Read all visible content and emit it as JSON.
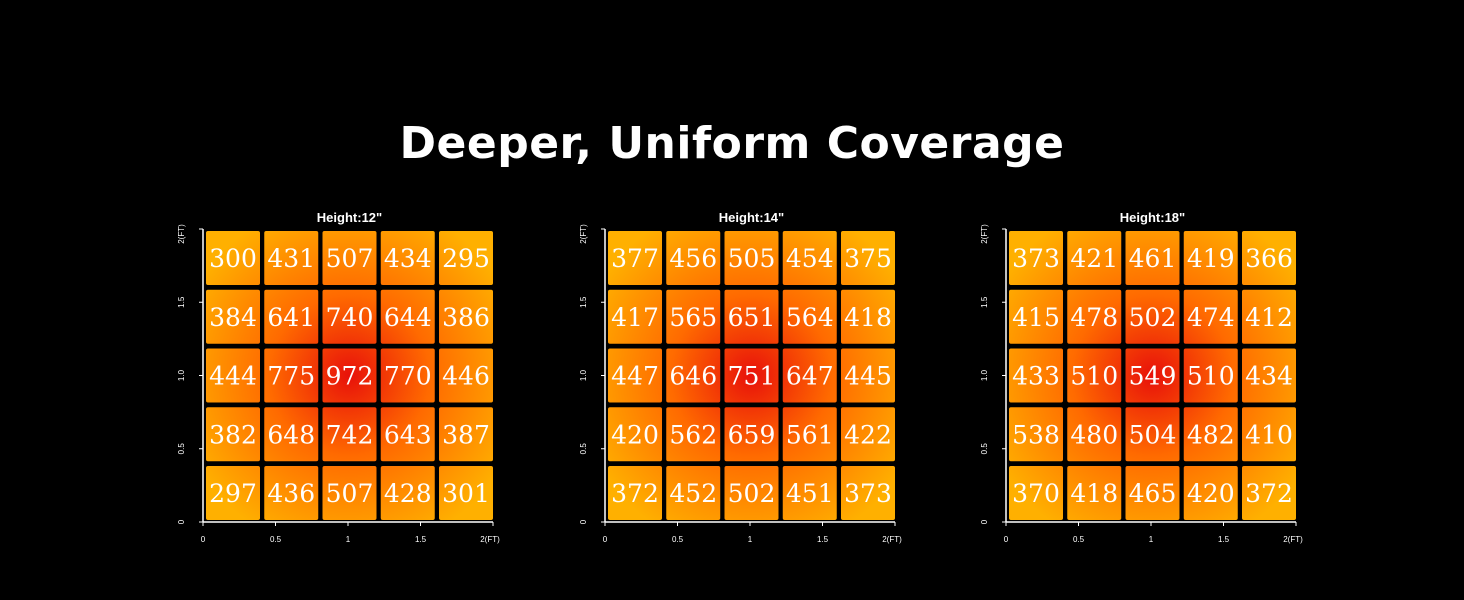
{
  "title": "Deeper, Uniform Coverage",
  "chart_data": [
    {
      "type": "heatmap",
      "title": "Height:12\"",
      "x_ticks": [
        "0",
        "0.5",
        "1",
        "1.5",
        "2(FT)"
      ],
      "y_ticks": [
        "0",
        "0.5",
        "1.0",
        "1.5",
        "2(FT)"
      ],
      "xlim": [
        0,
        2
      ],
      "ylim": [
        0,
        2
      ],
      "rows": [
        [
          300,
          431,
          507,
          434,
          295
        ],
        [
          384,
          641,
          740,
          644,
          386
        ],
        [
          444,
          775,
          972,
          770,
          446
        ],
        [
          382,
          648,
          742,
          643,
          387
        ],
        [
          297,
          436,
          507,
          428,
          301
        ]
      ]
    },
    {
      "type": "heatmap",
      "title": "Height:14\"",
      "x_ticks": [
        "0",
        "0.5",
        "1",
        "1.5",
        "2(FT)"
      ],
      "y_ticks": [
        "0",
        "0.5",
        "1.0",
        "1.5",
        "2(FT)"
      ],
      "xlim": [
        0,
        2
      ],
      "ylim": [
        0,
        2
      ],
      "rows": [
        [
          377,
          456,
          505,
          454,
          375
        ],
        [
          417,
          565,
          651,
          564,
          418
        ],
        [
          447,
          646,
          751,
          647,
          445
        ],
        [
          420,
          562,
          659,
          561,
          422
        ],
        [
          372,
          452,
          502,
          451,
          373
        ]
      ]
    },
    {
      "type": "heatmap",
      "title": "Height:18\"",
      "x_ticks": [
        "0",
        "0.5",
        "1",
        "1.5",
        "2(FT)"
      ],
      "y_ticks": [
        "0",
        "0.5",
        "1.0",
        "1.5",
        "2(FT)"
      ],
      "xlim": [
        0,
        2
      ],
      "ylim": [
        0,
        2
      ],
      "rows": [
        [
          373,
          421,
          461,
          419,
          366
        ],
        [
          415,
          478,
          502,
          474,
          412
        ],
        [
          433,
          510,
          549,
          510,
          434
        ],
        [
          538,
          480,
          504,
          482,
          410
        ],
        [
          370,
          418,
          465,
          420,
          372
        ]
      ]
    }
  ],
  "colors": {
    "background": "#000000",
    "text": "#ffffff",
    "cell_low": "#ffb000",
    "cell_mid": "#ff6a00",
    "cell_high": "#e8110a"
  }
}
